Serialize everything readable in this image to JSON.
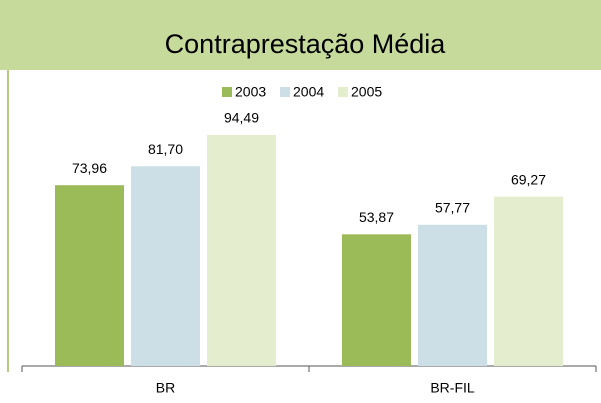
{
  "chart_data": {
    "type": "bar",
    "title": "Contraprestação Média",
    "categories": [
      "BR",
      "BR-FIL"
    ],
    "series": [
      {
        "name": "2003",
        "color": "#9bbb59",
        "values": [
          73.96,
          53.87
        ],
        "value_labels": [
          "73,96",
          "53,87"
        ]
      },
      {
        "name": "2004",
        "color": "#cddfe6",
        "values": [
          81.7,
          57.77
        ],
        "value_labels": [
          "81,70",
          "57,77"
        ]
      },
      {
        "name": "2005",
        "color": "#e4edcd",
        "values": [
          94.49,
          69.27
        ],
        "value_labels": [
          "94,49",
          "69,27"
        ]
      }
    ],
    "legend": "top"
  }
}
